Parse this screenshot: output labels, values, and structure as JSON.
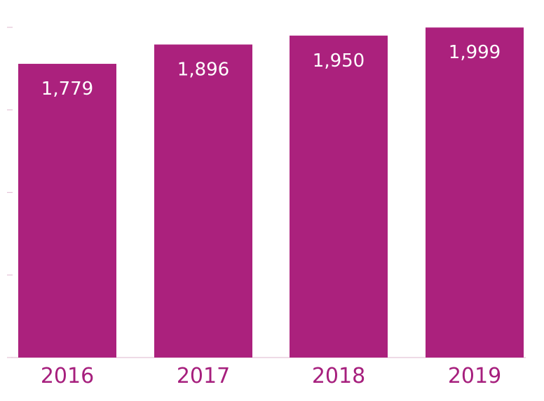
{
  "chart_data": {
    "type": "bar",
    "categories": [
      "2016",
      "2017",
      "2018",
      "2019"
    ],
    "values": [
      1779,
      1896,
      1950,
      1999
    ],
    "data_labels": [
      "1,779",
      "1,896",
      "1,950",
      "1,999"
    ],
    "title": "",
    "xlabel": "",
    "ylabel": "",
    "ylim": [
      0,
      2000
    ],
    "y_ticks": [
      0,
      500,
      1000,
      1500,
      2000
    ],
    "grid": false,
    "legend": "none",
    "colors": {
      "bar": "#ab217d",
      "value_label": "#ffffff",
      "category_label": "#a61f7d",
      "axis": "#e4c3d7"
    }
  }
}
